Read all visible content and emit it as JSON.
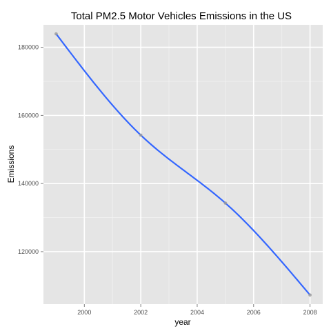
{
  "chart_data": {
    "type": "line",
    "title": "Total PM2.5 Motor Vehicles Emissions in the US",
    "xlabel": "year",
    "ylabel": "Emissions",
    "x": [
      1999,
      2002,
      2005,
      2008
    ],
    "series": [
      {
        "values": [
          183947,
          154212,
          134255,
          107263
        ]
      }
    ],
    "xlim": [
      1998.55,
      2008.45
    ],
    "ylim": [
      104600,
      186600
    ],
    "x_ticks": [
      2000,
      2002,
      2004,
      2006,
      2008
    ],
    "y_ticks": [
      120000,
      140000,
      160000,
      180000
    ],
    "grid": true,
    "smooth": true,
    "colors": {
      "panel": "#e5e5e5",
      "grid_major": "#ffffff",
      "grid_minor": "#f2f2f2",
      "line": "#3366ff",
      "point": "#9a9a9a"
    }
  }
}
